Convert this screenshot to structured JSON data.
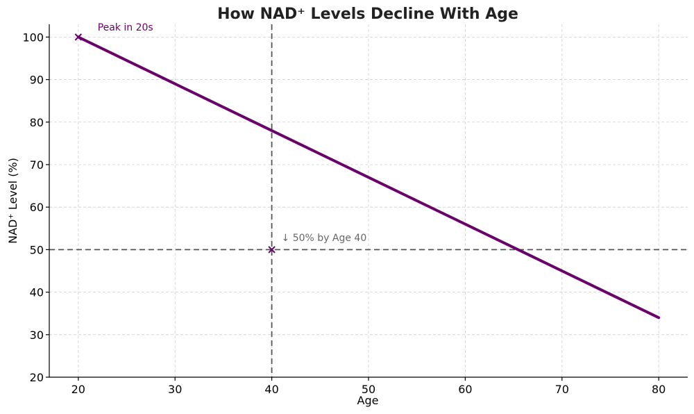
{
  "chart_data": {
    "type": "line",
    "title": "How NAD⁺ Levels Decline With Age",
    "xlabel": "Age",
    "ylabel": "NAD⁺ Level (%)",
    "xlim": [
      17,
      83
    ],
    "ylim": [
      20,
      103
    ],
    "xticks": [
      20,
      30,
      40,
      50,
      60,
      70,
      80
    ],
    "yticks": [
      20,
      30,
      40,
      50,
      60,
      70,
      80,
      90,
      100
    ],
    "grid": true,
    "series": [
      {
        "x": [
          20,
          80
        ],
        "y": [
          100,
          34
        ],
        "color": "#6a006a"
      }
    ],
    "reference_lines": {
      "vertical_x": 40,
      "horizontal_y": 50,
      "color": "#555555"
    },
    "markers": [
      {
        "x": 20,
        "y": 100,
        "symbol": "x",
        "color": "#6a006a"
      },
      {
        "x": 40,
        "y": 50,
        "symbol": "x",
        "color": "#6a006a"
      }
    ],
    "annotations": [
      {
        "text": "Peak in 20s",
        "x": 22,
        "y": 101.5,
        "color": "#6a006a"
      },
      {
        "text": "↓ 50% by Age 40",
        "x": 41,
        "y": 52,
        "color": "#666666"
      }
    ]
  }
}
